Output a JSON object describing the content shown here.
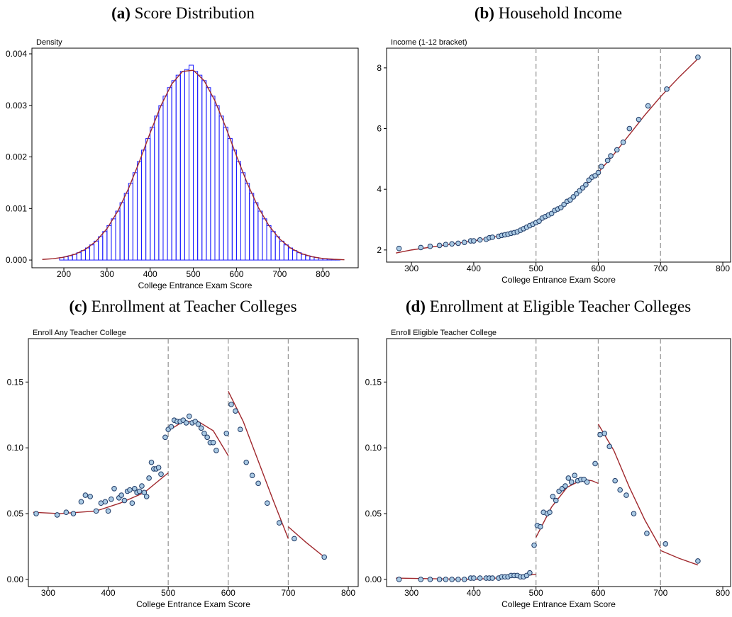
{
  "chart_data": [
    {
      "type": "histogram",
      "panel": "(a)",
      "title": "Score Distribution",
      "xlabel": "College Entrance Exam Score",
      "ylabel": "Density",
      "bins": [
        190,
        200,
        210,
        220,
        230,
        240,
        250,
        260,
        270,
        280,
        290,
        300,
        310,
        320,
        330,
        340,
        350,
        360,
        370,
        380,
        390,
        400,
        410,
        420,
        430,
        440,
        450,
        460,
        470,
        480,
        490,
        500,
        510,
        520,
        530,
        540,
        550,
        560,
        570,
        580,
        590,
        600,
        610,
        620,
        630,
        640,
        650,
        660,
        670,
        680,
        690,
        700,
        710,
        720,
        730,
        740,
        750,
        760,
        770,
        780,
        790,
        800,
        810,
        820,
        830,
        840
      ],
      "values": [
        4.8e-05,
        6.4e-05,
        8.4e-05,
        0.00011,
        0.000143,
        0.000184,
        0.000234,
        0.000294,
        0.000367,
        0.000453,
        0.000553,
        0.000669,
        0.0008,
        0.000949,
        0.001113,
        0.001294,
        0.001488,
        0.001694,
        0.00191,
        0.002133,
        0.002357,
        0.002579,
        0.002793,
        0.002996,
        0.003181,
        0.003344,
        0.00348,
        0.003586,
        0.003659,
        0.003696,
        0.00378,
        0.003659,
        0.003586,
        0.00348,
        0.003344,
        0.003181,
        0.002996,
        0.002793,
        0.002579,
        0.002357,
        0.002133,
        0.00191,
        0.001694,
        0.001488,
        0.001294,
        0.001113,
        0.000949,
        0.0008,
        0.000669,
        0.000553,
        0.000453,
        0.000367,
        0.000294,
        0.000234,
        0.000184,
        0.000143,
        0.00011,
        8.4e-05,
        6.4e-05,
        4.8e-05,
        3.5e-05,
        2.6e-05,
        1.9e-05,
        1.3e-05,
        9e-06
      ],
      "color": "#1a1aff",
      "fit": {
        "color": "#a0282d",
        "x": [
          150,
          175,
          200,
          225,
          250,
          275,
          300,
          325,
          350,
          375,
          400,
          425,
          450,
          475,
          500,
          525,
          550,
          575,
          600,
          625,
          650,
          675,
          700,
          725,
          750,
          775,
          800,
          825,
          850
        ],
        "values": [
          1.14e-05,
          2.6e-05,
          5.5e-05,
          0.00011,
          0.000208,
          0.000367,
          0.000609,
          0.000949,
          0.001389,
          0.00191,
          0.002468,
          0.002996,
          0.003416,
          0.003659,
          0.003682,
          0.00348,
          0.003091,
          0.002579,
          0.002021,
          0.001488,
          0.001029,
          0.000669,
          0.000408,
          0.000234,
          0.000126,
          6.4e-05,
          3e-05,
          1.5e-05,
          5.7e-06
        ]
      },
      "xlim": [
        126,
        882
      ],
      "xticks": [
        200,
        300,
        400,
        500,
        600,
        700,
        800
      ],
      "ylim": [
        -0.00015,
        0.00411
      ],
      "yticks": [
        {
          "value": 0,
          "label": "0.000"
        },
        {
          "value": 0.001,
          "label": "0.001"
        },
        {
          "value": 0.002,
          "label": "0.002"
        },
        {
          "value": 0.003,
          "label": "0.003"
        },
        {
          "value": 0.004,
          "label": "0.004"
        }
      ]
    },
    {
      "type": "scatter",
      "panel": "(b)",
      "title": "Household Income",
      "xlabel": "College Entrance Exam Score",
      "ylabel": "Income (1-12 bracket)",
      "x": [
        280,
        315,
        330,
        345,
        355,
        365,
        375,
        385,
        395,
        400,
        410,
        420,
        425,
        430,
        440,
        445,
        450,
        455,
        460,
        465,
        470,
        475,
        480,
        485,
        490,
        495,
        500,
        505,
        510,
        515,
        520,
        525,
        530,
        535,
        540,
        545,
        550,
        555,
        560,
        565,
        570,
        575,
        580,
        585,
        590,
        595,
        600,
        605,
        615,
        620,
        630,
        640,
        650,
        665,
        680,
        710,
        760
      ],
      "values": [
        2.05,
        2.08,
        2.12,
        2.15,
        2.18,
        2.2,
        2.22,
        2.25,
        2.3,
        2.3,
        2.33,
        2.35,
        2.4,
        2.42,
        2.45,
        2.48,
        2.5,
        2.52,
        2.55,
        2.57,
        2.6,
        2.65,
        2.7,
        2.75,
        2.8,
        2.85,
        2.9,
        2.95,
        3.05,
        3.1,
        3.15,
        3.2,
        3.3,
        3.35,
        3.4,
        3.5,
        3.6,
        3.65,
        3.75,
        3.85,
        3.95,
        4.05,
        4.15,
        4.3,
        4.4,
        4.45,
        4.55,
        4.75,
        4.95,
        5.1,
        5.3,
        5.55,
        6.0,
        6.3,
        6.75,
        7.3,
        8.35
      ],
      "marker_color": "#a9c9e3",
      "edge_color": "#1f3a66",
      "fit": {
        "color": "#a0282d",
        "x": [
          275,
          300,
          350,
          400,
          450,
          500,
          525,
          550,
          575,
          600,
          625,
          650,
          675,
          700,
          730,
          760
        ],
        "values": [
          1.9,
          2.0,
          2.15,
          2.3,
          2.5,
          2.85,
          3.2,
          3.6,
          4.05,
          4.55,
          5.15,
          5.8,
          6.45,
          7.05,
          7.7,
          8.3
        ]
      },
      "vlines": [
        500,
        600,
        700
      ],
      "vline_color": "#9a9a9a",
      "xlim": [
        260,
        812.5
      ],
      "xticks": [
        300,
        400,
        500,
        600,
        700,
        800
      ],
      "ylim": [
        1.6,
        8.65
      ],
      "yticks": [
        2,
        4,
        6,
        8
      ]
    },
    {
      "type": "scatter",
      "panel": "(c)",
      "title": "Enrollment at Teacher Colleges",
      "xlabel": "College Entrance Exam Score",
      "ylabel": "Enroll Any Teacher College",
      "x": [
        280,
        315,
        330,
        342,
        355,
        362,
        370,
        380,
        388,
        395,
        400,
        405,
        410,
        418,
        422,
        427,
        432,
        436,
        440,
        444,
        448,
        452,
        456,
        460,
        464,
        468,
        472,
        476,
        480,
        484,
        488,
        495,
        500,
        505,
        510,
        515,
        520,
        525,
        530,
        535,
        540,
        545,
        550,
        555,
        560,
        565,
        570,
        575,
        580,
        597,
        605,
        612,
        620,
        630,
        640,
        650,
        665,
        685,
        710,
        760
      ],
      "values": [
        0.05,
        0.049,
        0.051,
        0.05,
        0.059,
        0.064,
        0.063,
        0.052,
        0.058,
        0.059,
        0.052,
        0.061,
        0.069,
        0.062,
        0.064,
        0.06,
        0.067,
        0.068,
        0.058,
        0.069,
        0.066,
        0.067,
        0.071,
        0.066,
        0.063,
        0.077,
        0.089,
        0.084,
        0.084,
        0.085,
        0.08,
        0.108,
        0.114,
        0.116,
        0.121,
        0.12,
        0.12,
        0.121,
        0.119,
        0.124,
        0.119,
        0.12,
        0.118,
        0.115,
        0.111,
        0.108,
        0.104,
        0.104,
        0.098,
        0.111,
        0.133,
        0.128,
        0.114,
        0.089,
        0.079,
        0.073,
        0.058,
        0.043,
        0.031,
        0.017
      ],
      "marker_color": "#a9c9e3",
      "edge_color": "#1f3a66",
      "fit": {
        "color": "#a0282d",
        "x": [
          275,
          320,
          380,
          420,
          460,
          500,
          null,
          500,
          525,
          550,
          575,
          600,
          null,
          600,
          625,
          650,
          675,
          700,
          null,
          700,
          730,
          760
        ],
        "values": [
          0.051,
          0.05,
          0.052,
          0.058,
          0.066,
          0.081,
          null,
          0.113,
          0.12,
          0.12,
          0.113,
          0.094,
          null,
          0.143,
          0.12,
          0.09,
          0.06,
          0.031,
          null,
          0.04,
          0.028,
          0.017
        ]
      },
      "vlines": [
        500,
        600,
        700
      ],
      "vline_color": "#9a9a9a",
      "xlim": [
        267,
        816.5
      ],
      "xticks": [
        300,
        400,
        500,
        600,
        700,
        800
      ],
      "ylim": [
        -0.0054,
        0.183
      ],
      "yticks": [
        {
          "value": 0,
          "label": "0.00"
        },
        {
          "value": 0.05,
          "label": "0.05"
        },
        {
          "value": 0.1,
          "label": "0.10"
        },
        {
          "value": 0.15,
          "label": "0.15"
        }
      ]
    },
    {
      "type": "scatter",
      "panel": "(d)",
      "title": "Enrollment at Eligible Teacher Colleges",
      "xlabel": "College Entrance Exam Score",
      "ylabel": "Enroll Eligible Teacher College",
      "x": [
        280,
        315,
        330,
        345,
        355,
        365,
        375,
        385,
        395,
        400,
        410,
        420,
        425,
        430,
        440,
        445,
        450,
        455,
        460,
        465,
        470,
        475,
        480,
        485,
        490,
        497,
        502,
        507,
        512,
        518,
        522,
        527,
        532,
        537,
        542,
        547,
        552,
        557,
        562,
        567,
        572,
        577,
        582,
        595,
        603,
        610,
        618,
        627,
        635,
        645,
        657,
        678,
        708,
        760
      ],
      "values": [
        0,
        0,
        0,
        0,
        0,
        0,
        0,
        0,
        0.001,
        0.001,
        0.001,
        0.001,
        0.001,
        0.001,
        0.001,
        0.002,
        0.002,
        0.002,
        0.003,
        0.003,
        0.003,
        0.002,
        0.002,
        0.003,
        0.005,
        0.026,
        0.041,
        0.04,
        0.051,
        0.05,
        0.051,
        0.063,
        0.06,
        0.067,
        0.069,
        0.071,
        0.077,
        0.074,
        0.079,
        0.075,
        0.076,
        0.076,
        0.074,
        0.088,
        0.11,
        0.111,
        0.101,
        0.075,
        0.068,
        0.064,
        0.05,
        0.035,
        0.027,
        0.014
      ],
      "marker_color": "#a9c9e3",
      "edge_color": "#1f3a66",
      "fit": {
        "color": "#a0282d",
        "x": [
          275,
          400,
          470,
          500,
          null,
          500,
          525,
          550,
          575,
          590,
          600,
          null,
          600,
          625,
          650,
          675,
          700,
          null,
          700,
          730,
          760
        ],
        "values": [
          0.001,
          0,
          0.002,
          0.004,
          null,
          0.032,
          0.055,
          0.07,
          0.076,
          0.075,
          0.073,
          null,
          0.118,
          0.098,
          0.07,
          0.045,
          0.024,
          null,
          0.022,
          0.016,
          0.011
        ]
      },
      "vlines": [
        500,
        600,
        700
      ],
      "vline_color": "#9a9a9a",
      "xlim": [
        260,
        812.5
      ],
      "xticks": [
        300,
        400,
        500,
        600,
        700,
        800
      ],
      "ylim": [
        -0.0054,
        0.183
      ],
      "yticks": [
        {
          "value": 0,
          "label": "0.00"
        },
        {
          "value": 0.05,
          "label": "0.05"
        },
        {
          "value": 0.1,
          "label": "0.10"
        },
        {
          "value": 0.15,
          "label": "0.15"
        }
      ]
    }
  ]
}
